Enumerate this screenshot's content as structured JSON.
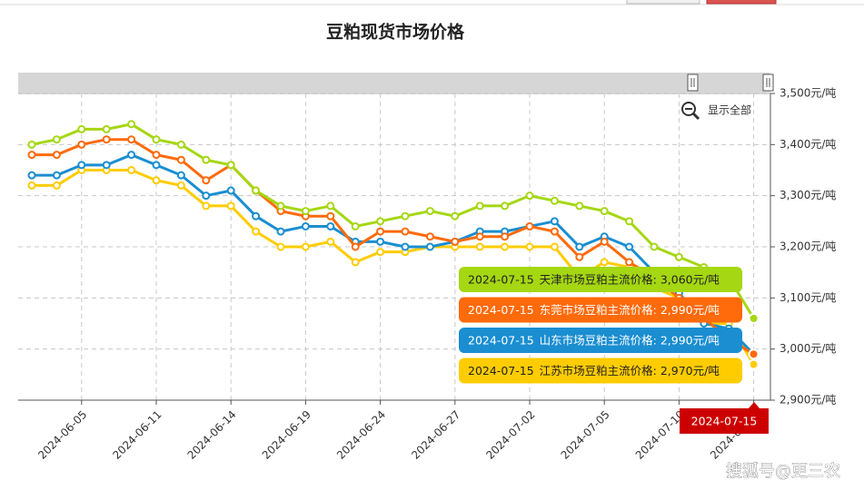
{
  "chart_data": {
    "type": "line",
    "title": "豆粕现货市场价格",
    "categories": [
      null,
      null,
      "2024-06-05",
      null,
      null,
      "2024-06-11",
      null,
      null,
      "2024-06-14",
      null,
      null,
      "2024-06-19",
      null,
      null,
      "2024-06-24",
      null,
      null,
      "2024-06-27",
      null,
      null,
      "2024-07-02",
      null,
      null,
      "2024-07-05",
      null,
      null,
      "2024-07-10",
      null,
      null,
      "2024-07-15"
    ],
    "series": [
      {
        "name": "天津市场豆粕主流价格",
        "color": "#a5d712",
        "values": [
          3400,
          3410,
          3430,
          3430,
          3440,
          3410,
          3400,
          3370,
          3360,
          3310,
          3280,
          3270,
          3280,
          3240,
          3250,
          3260,
          3270,
          3260,
          3280,
          3280,
          3300,
          3290,
          3280,
          3270,
          3250,
          3200,
          3180,
          3160,
          3140,
          3060
        ]
      },
      {
        "name": "东莞市场豆粕主流价格",
        "color": "#ff6a0a",
        "values": [
          3380,
          3380,
          3400,
          3410,
          3410,
          3380,
          3370,
          3330,
          3360,
          3310,
          3270,
          3260,
          3260,
          3200,
          3230,
          3230,
          3220,
          3210,
          3220,
          3220,
          3240,
          3230,
          3180,
          3210,
          3170,
          3140,
          3100,
          3060,
          3020,
          2990
        ]
      },
      {
        "name": "山东市场豆粕主流价格",
        "color": "#1a8ed1",
        "values": [
          3340,
          3340,
          3360,
          3360,
          3380,
          3360,
          3340,
          3300,
          3310,
          3260,
          3230,
          3240,
          3240,
          3210,
          3210,
          3200,
          3200,
          3210,
          3230,
          3230,
          3240,
          3250,
          3200,
          3220,
          3200,
          3150,
          3110,
          3050,
          3040,
          2990
        ]
      },
      {
        "name": "江苏市场豆粕主流价格",
        "color": "#ffcc00",
        "values": [
          3320,
          3320,
          3350,
          3350,
          3350,
          3330,
          3320,
          3280,
          3280,
          3230,
          3200,
          3200,
          3210,
          3170,
          3190,
          3190,
          3200,
          3200,
          3200,
          3200,
          3200,
          3200,
          3140,
          3170,
          3160,
          3120,
          3100,
          3050,
          3050,
          2970
        ]
      }
    ],
    "ylim": [
      2900,
      3500
    ],
    "yticks": [
      {
        "value": 2900,
        "label": "2,900元/吨"
      },
      {
        "value": 3000,
        "label": "3,000元/吨"
      },
      {
        "value": 3100,
        "label": "3,100元/吨"
      },
      {
        "value": 3200,
        "label": "3,200元/吨"
      },
      {
        "value": 3300,
        "label": "3,300元/吨"
      },
      {
        "value": 3400,
        "label": "3,400元/吨"
      },
      {
        "value": 3500,
        "label": "3,500元/吨"
      }
    ],
    "grid": true,
    "tooltip": {
      "date": "2024-07-15",
      "items": [
        "天津市场豆粕主流价格: 3,060元/吨",
        "东莞市场豆粕主流价格: 2,990元/吨",
        "山东市场豆粕主流价格: 2,990元/吨",
        "江苏市场豆粕主流价格: 2,970元/吨"
      ]
    },
    "zoom_button": "显示全部"
  },
  "watermark": "搜狐号@更三农"
}
